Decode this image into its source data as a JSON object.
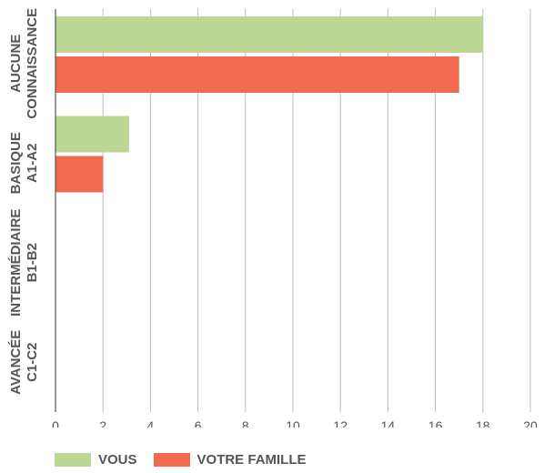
{
  "chart_data": {
    "type": "bar",
    "orientation": "horizontal",
    "categories": [
      [
        "AUCUNE",
        "CONNAISSANCE"
      ],
      [
        "BASIQUE",
        "A1-A2"
      ],
      [
        "INTERMÉDIAIRE",
        "B1-B2"
      ],
      [
        "AVANCÉE",
        "C1-C2"
      ]
    ],
    "series": [
      {
        "name": "VOUS",
        "color": "#bdd795",
        "values": [
          18,
          3.1,
          0,
          0
        ]
      },
      {
        "name": "VOTRE FAMILLE",
        "color": "#f26a4f",
        "values": [
          17,
          2,
          0,
          0
        ]
      }
    ],
    "xlim": [
      0,
      20
    ],
    "xticks": [
      0,
      2,
      4,
      6,
      8,
      10,
      12,
      14,
      16,
      18,
      20
    ],
    "grid": true,
    "legend_position": "bottom-left"
  }
}
